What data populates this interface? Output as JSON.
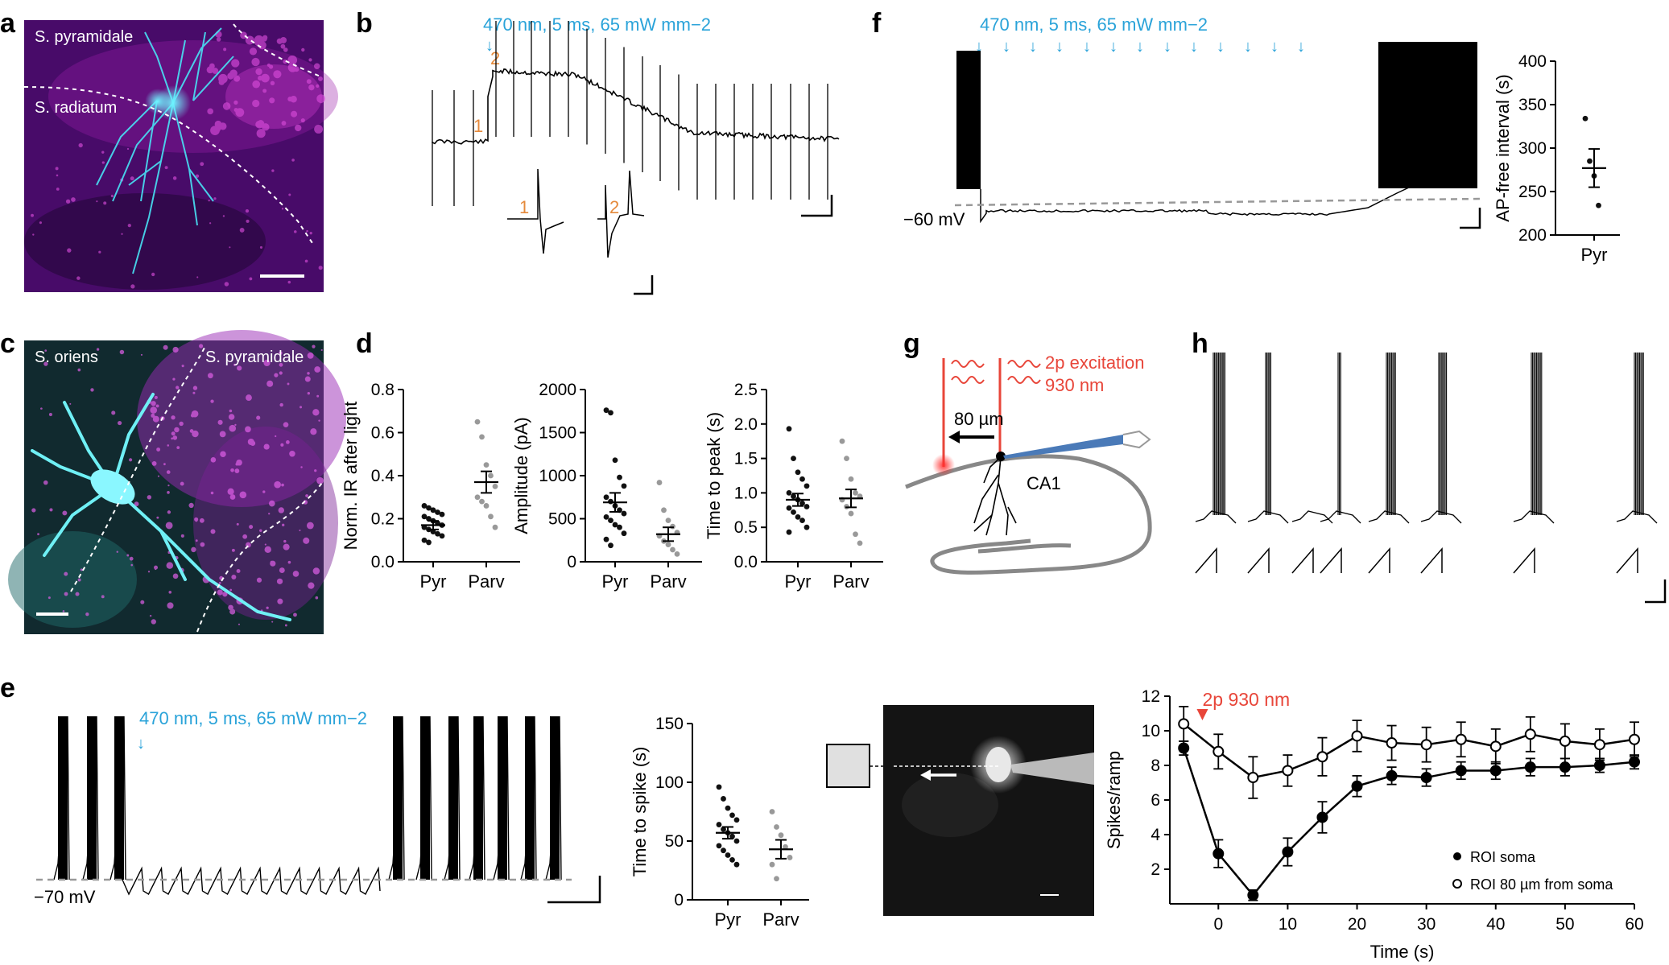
{
  "panels": {
    "a": {
      "label": "a",
      "region_top": "S. pyramidale",
      "region_mid": "S. radiatum"
    },
    "b": {
      "label": "b",
      "stim": "470 nm, 5 ms, 65 mW mm−2",
      "mark1": "1",
      "mark2": "2"
    },
    "c": {
      "label": "c",
      "region_left": "S. oriens",
      "region_right": "S. pyramidale"
    },
    "d": {
      "label": "d"
    },
    "e": {
      "label": "e",
      "stim": "470 nm, 5 ms, 65 mW mm−2",
      "vm": "−70 mV"
    },
    "f": {
      "label": "f",
      "stim": "470 nm, 5 ms, 65 mW mm−2",
      "vm": "−60 mV"
    },
    "g": {
      "label": "g",
      "excitation": "2p excitation",
      "wavelength": "930 nm",
      "distance": "80 µm",
      "region": "CA1"
    },
    "h": {
      "label": "h",
      "stim": "2p 930 nm",
      "legend_soma": "ROI soma",
      "legend_80": "ROI 80 µm from soma"
    }
  },
  "chart_data": [
    {
      "id": "d1",
      "type": "scatter",
      "ylabel": "Norm. IR after light",
      "categories": [
        "Pyr",
        "Parv"
      ],
      "ylim": [
        0,
        0.8
      ],
      "yticks": [
        0,
        0.2,
        0.4,
        0.6,
        0.8
      ],
      "series": [
        {
          "name": "Pyr",
          "color": "#111111",
          "mean": 0.17,
          "sem": 0.02,
          "values": [
            0.26,
            0.25,
            0.24,
            0.23,
            0.22,
            0.21,
            0.2,
            0.19,
            0.18,
            0.17,
            0.16,
            0.15,
            0.14,
            0.13,
            0.12,
            0.1,
            0.09
          ]
        },
        {
          "name": "Parv",
          "color": "#999999",
          "mean": 0.37,
          "sem": 0.05,
          "values": [
            0.65,
            0.58,
            0.45,
            0.4,
            0.35,
            0.3,
            0.28,
            0.26,
            0.21,
            0.16
          ]
        }
      ]
    },
    {
      "id": "d2",
      "type": "scatter",
      "ylabel": "Amplitude (pA)",
      "categories": [
        "Pyr",
        "Parv"
      ],
      "ylim": [
        0,
        2000
      ],
      "yticks": [
        0,
        500,
        1000,
        1500,
        2000
      ],
      "series": [
        {
          "name": "Pyr",
          "color": "#111111",
          "mean": 690,
          "sem": 110,
          "values": [
            1760,
            1730,
            1180,
            980,
            880,
            750,
            700,
            650,
            600,
            560,
            520,
            480,
            430,
            400,
            330,
            260,
            190
          ]
        },
        {
          "name": "Parv",
          "color": "#999999",
          "mean": 320,
          "sem": 80,
          "values": [
            920,
            600,
            480,
            410,
            340,
            300,
            240,
            200,
            140,
            90
          ]
        }
      ]
    },
    {
      "id": "d3",
      "type": "scatter",
      "ylabel": "Time to peak (s)",
      "categories": [
        "Pyr",
        "Parv"
      ],
      "ylim": [
        0,
        2.5
      ],
      "yticks": [
        0,
        0.5,
        1.0,
        1.5,
        2.0,
        2.5
      ],
      "series": [
        {
          "name": "Pyr",
          "color": "#111111",
          "mean": 0.9,
          "sem": 0.09,
          "values": [
            1.93,
            1.5,
            1.3,
            1.2,
            1.1,
            1.0,
            0.95,
            0.9,
            0.85,
            0.8,
            0.78,
            0.72,
            0.65,
            0.6,
            0.5,
            0.43
          ]
        },
        {
          "name": "Parv",
          "color": "#999999",
          "mean": 0.92,
          "sem": 0.13,
          "values": [
            1.75,
            1.5,
            1.2,
            1.0,
            0.95,
            0.9,
            0.8,
            0.7,
            0.4,
            0.27
          ]
        }
      ]
    },
    {
      "id": "e2",
      "type": "scatter",
      "ylabel": "Time to spike (s)",
      "categories": [
        "Pyr",
        "Parv"
      ],
      "ylim": [
        0,
        150
      ],
      "yticks": [
        0,
        50,
        100,
        150
      ],
      "series": [
        {
          "name": "Pyr",
          "color": "#111111",
          "mean": 57,
          "sem": 5,
          "values": [
            96,
            86,
            78,
            72,
            68,
            64,
            60,
            57,
            54,
            50,
            46,
            42,
            38,
            34,
            30
          ]
        },
        {
          "name": "Parv",
          "color": "#999999",
          "mean": 43,
          "sem": 8,
          "values": [
            75,
            62,
            55,
            45,
            36,
            30,
            18
          ]
        }
      ]
    },
    {
      "id": "f2",
      "type": "scatter",
      "ylabel": "AP-free interval (s)",
      "categories": [
        "Pyr"
      ],
      "ylim": [
        200,
        400
      ],
      "yticks": [
        200,
        250,
        300,
        350,
        400
      ],
      "series": [
        {
          "name": "Pyr",
          "color": "#111111",
          "mean": 277,
          "sem": 22,
          "values": [
            334,
            285,
            268,
            234
          ]
        }
      ]
    },
    {
      "id": "h2",
      "type": "line",
      "xlabel": "Time (s)",
      "ylabel": "Spikes/ramp",
      "xlim": [
        -7,
        60
      ],
      "ylim": [
        0,
        12
      ],
      "xticks": [
        0,
        10,
        20,
        30,
        40,
        50,
        60
      ],
      "yticks": [
        2,
        4,
        6,
        8,
        10,
        12
      ],
      "x": [
        -5,
        0,
        5,
        10,
        15,
        20,
        25,
        30,
        35,
        40,
        45,
        50,
        55,
        60
      ],
      "series": [
        {
          "name": "ROI soma",
          "fill": "#000000",
          "values": [
            9.0,
            2.9,
            0.5,
            3.0,
            5.0,
            6.8,
            7.4,
            7.3,
            7.7,
            7.7,
            7.9,
            7.9,
            8.0,
            8.2
          ],
          "err": [
            0.4,
            0.8,
            0.3,
            0.8,
            0.9,
            0.6,
            0.5,
            0.5,
            0.5,
            0.5,
            0.5,
            0.5,
            0.4,
            0.4
          ]
        },
        {
          "name": "ROI 80 µm from soma",
          "fill": "#ffffff",
          "values": [
            10.4,
            8.8,
            7.3,
            7.7,
            8.5,
            9.7,
            9.3,
            9.2,
            9.5,
            9.1,
            9.8,
            9.4,
            9.2,
            9.5
          ],
          "err": [
            1.0,
            1.0,
            1.2,
            0.9,
            1.1,
            0.9,
            1.0,
            1.0,
            1.0,
            1.0,
            1.0,
            1.0,
            0.9,
            1.0
          ]
        }
      ]
    }
  ]
}
